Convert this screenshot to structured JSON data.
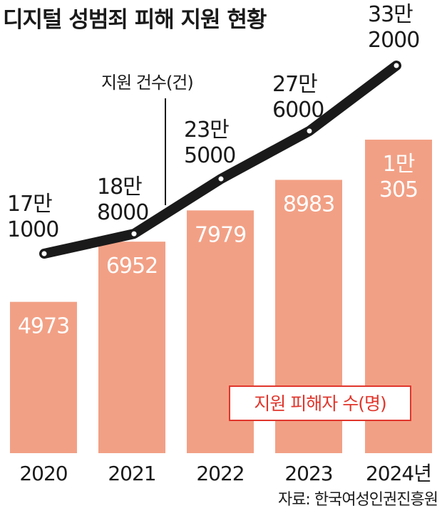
{
  "colors": {
    "bar": "#f2a085",
    "line": "#1a1a1a",
    "bar_label": "#ffffff",
    "bar_label_last": "#e0362c",
    "legend_border": "#e0362c"
  },
  "chart_data": {
    "type": "bar",
    "title": "디지털 성범죄 피해 지원 현황",
    "categories": [
      "2020",
      "2021",
      "2022",
      "2023",
      "2024년"
    ],
    "source": "자료: 한국여성인권진흥원",
    "ylim": [
      0,
      12000
    ],
    "series": [
      {
        "name": "지원 피해자 수(명)",
        "type": "bar",
        "values": [
          4973,
          6952,
          7979,
          8983,
          10305
        ],
        "labels": [
          [
            "4973"
          ],
          [
            "6952"
          ],
          [
            "7979"
          ],
          [
            "8983"
          ],
          [
            "1만",
            "305"
          ]
        ]
      },
      {
        "name": "지원 건수(건)",
        "type": "line",
        "values": [
          171000,
          188000,
          235000,
          276000,
          332000
        ],
        "labels": [
          [
            "17만",
            "1000"
          ],
          [
            "18만",
            "8000"
          ],
          [
            "23만",
            "5000"
          ],
          [
            "27만",
            "6000"
          ],
          [
            "33만",
            "2000"
          ]
        ]
      }
    ],
    "line_ylim": [
      60000,
      350000
    ],
    "grid": false
  }
}
